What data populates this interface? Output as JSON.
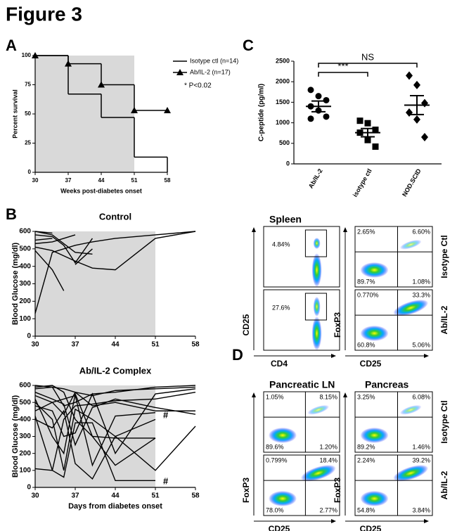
{
  "figure_title": "Figure 3",
  "panel_labels": [
    "A",
    "B",
    "C",
    "D"
  ],
  "chart_data": [
    {
      "type": "step",
      "xlabel": "Weeks post-diabetes onset",
      "ylabel": "Percent survival",
      "x": [
        30,
        37,
        44,
        51,
        58
      ],
      "series": [
        {
          "name": "Isotype ctl (n=14)",
          "color": "#000000",
          "marker": "none",
          "values": [
            100,
            67,
            47,
            13,
            13
          ]
        },
        {
          "name": "Ab/IL-2 (n=17)",
          "color": "#000000",
          "marker": "triangle",
          "values": [
            100,
            93,
            75,
            53,
            53
          ]
        }
      ],
      "annotation": "* P<0.02",
      "shade": [
        30,
        51
      ],
      "shade_color": "#d9d9d9",
      "xlim": [
        30,
        58
      ],
      "ylim": [
        0,
        100
      ],
      "xticks": [
        30,
        37,
        44,
        51,
        58
      ],
      "yticks": [
        0,
        25,
        50,
        75,
        100
      ]
    },
    {
      "type": "dot",
      "ylabel": "C-peptide (pg/ml)",
      "categories": [
        "Ab/IL-2",
        "isotype ctl",
        "NOD.SCID"
      ],
      "markers": [
        "circle",
        "square",
        "diamond"
      ],
      "color": "#000000",
      "points": [
        [
          1800,
          1650,
          1550,
          1400,
          1300,
          1150,
          1100
        ],
        [
          1050,
          990,
          830,
          760,
          580,
          420
        ],
        [
          2150,
          1920,
          1480,
          1250,
          1080,
          650
        ]
      ],
      "means": [
        1400,
        760,
        1430
      ],
      "sems": [
        130,
        100,
        230
      ],
      "annotations": [
        "***",
        "NS"
      ],
      "ylim": [
        0,
        2500
      ],
      "yticks": [
        0,
        500,
        1000,
        1500,
        2000,
        2500
      ]
    },
    {
      "type": "line",
      "title": "Control",
      "ylabel": "Blood Glucose (mg/dl)",
      "color": "#000000",
      "shade": [
        30,
        51
      ],
      "shade_color": "#d9d9d9",
      "x": [
        30,
        33,
        35,
        37,
        40,
        44,
        51,
        58
      ],
      "series": [
        {
          "values": [
            130,
            480,
            500,
            520,
            540,
            560,
            580,
            600
          ]
        },
        {
          "values": [
            600,
            590,
            null,
            null,
            null,
            null,
            600,
            null
          ]
        },
        {
          "values": [
            580,
            570,
            520,
            420,
            560,
            null,
            590,
            null
          ]
        },
        {
          "values": [
            550,
            560,
            null,
            410,
            500,
            null,
            590,
            null
          ]
        },
        {
          "values": [
            510,
            490,
            460,
            430,
            390,
            380,
            560,
            600
          ]
        },
        {
          "values": [
            490,
            380,
            260,
            null,
            350,
            null,
            null,
            null
          ]
        },
        {
          "values": [
            530,
            540,
            560,
            580,
            null,
            590,
            null,
            null
          ]
        },
        {
          "values": [
            600,
            580,
            530,
            480,
            470,
            null,
            null,
            null
          ]
        }
      ],
      "xlim": [
        30,
        58
      ],
      "ylim": [
        0,
        600
      ],
      "xticks": [
        30,
        37,
        44,
        51,
        58
      ],
      "yticks": [
        0,
        100,
        200,
        300,
        400,
        500,
        600
      ]
    },
    {
      "type": "line",
      "title": "Ab/IL-2 Complex",
      "xlabel": "Days from diabetes onset",
      "ylabel": "Blood Glucose (mg/dl)",
      "color": "#000000",
      "shade": [
        30,
        51
      ],
      "shade_color": "#d9d9d9",
      "x": [
        30,
        33,
        35,
        37,
        40,
        44,
        51,
        58
      ],
      "series": [
        {
          "values": [
            600,
            590,
            480,
            500,
            550,
            560,
            590,
            600
          ]
        },
        {
          "values": [
            580,
            590,
            580,
            560,
            540,
            570,
            580,
            590
          ]
        },
        {
          "values": [
            560,
            520,
            490,
            250,
            470,
            520,
            470,
            430
          ]
        },
        {
          "values": [
            540,
            500,
            430,
            560,
            480,
            500,
            450,
            450
          ]
        },
        {
          "values": [
            520,
            300,
            200,
            550,
            300,
            130,
            290,
            null
          ]
        },
        {
          "values": [
            500,
            400,
            100,
            460,
            400,
            300,
            400,
            null
          ]
        },
        {
          "values": [
            480,
            450,
            300,
            320,
            550,
            200,
            550,
            580
          ]
        },
        {
          "values": [
            420,
            100,
            60,
            380,
            380,
            40,
            40,
            null
          ]
        },
        {
          "values": [
            400,
            350,
            450,
            140,
            50,
            300,
            100,
            360
          ]
        },
        {
          "values": [
            110,
            100,
            400,
            480,
            490,
            510,
            520,
            560
          ]
        },
        {
          "values": [
            450,
            500,
            520,
            540,
            130,
            420,
            440,
            null
          ]
        },
        {
          "values": [
            590,
            600,
            560,
            400,
            300,
            290,
            290,
            null
          ]
        }
      ],
      "annotations": [
        "#",
        "#"
      ],
      "xlim": [
        30,
        58
      ],
      "ylim": [
        0,
        600
      ],
      "xticks": [
        30,
        37,
        44,
        51,
        58
      ],
      "yticks": [
        0,
        100,
        200,
        300,
        400,
        500,
        600
      ]
    }
  ],
  "flow_rows": [
    "Isotype Ctl",
    "Ab/IL-2"
  ],
  "flow": [
    {
      "title": "Spleen",
      "xlabel": "CD4",
      "ylabel": "CD25",
      "labels": [
        [
          "4.84%"
        ],
        [
          "27.6%"
        ]
      ]
    },
    {
      "xlabel": "CD25",
      "ylabel": "FoxP3",
      "labels": [
        [
          "2.65%",
          "6.60%",
          "89.7%",
          "1.08%"
        ],
        [
          "0.770%",
          "33.3%",
          "60.8%",
          "5.06%"
        ]
      ]
    },
    {
      "title": "Pancreatic LN",
      "xlabel": "CD25",
      "ylabel": "FoxP3",
      "labels": [
        [
          "1.05%",
          "8.15%",
          "89.6%",
          "1.20%"
        ],
        [
          "0.799%",
          "18.4%",
          "78.0%",
          "2.77%"
        ]
      ]
    },
    {
      "title": "Pancreas",
      "xlabel": "CD25",
      "ylabel": "FoxP3",
      "labels": [
        [
          "3.25%",
          "6.08%",
          "89.2%",
          "1.46%"
        ],
        [
          "2.24%",
          "39.2%",
          "54.8%",
          "3.84%"
        ]
      ]
    }
  ]
}
